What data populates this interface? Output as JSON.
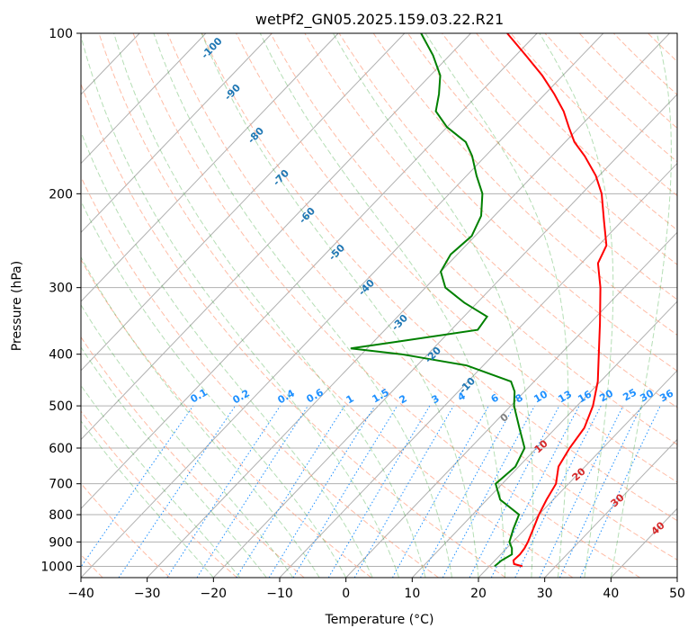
{
  "chart_data": {
    "type": "line",
    "title": "wetPf2_GN05.2025.159.03.22.R21",
    "xlabel": "Temperature (°C)",
    "ylabel": "Pressure (hPa)",
    "xlim": [
      -40,
      50
    ],
    "ylim_hpa": [
      1050,
      100
    ],
    "y_scale": "log",
    "x_ticks": [
      -40,
      -30,
      -20,
      -10,
      0,
      10,
      20,
      30,
      40,
      50
    ],
    "y_ticks": [
      1000,
      900,
      800,
      700,
      600,
      500,
      400,
      300,
      200,
      100
    ],
    "grid": true,
    "isotherm_labels": [
      -100,
      -90,
      -80,
      -70,
      -60,
      -50,
      -40,
      -30,
      -20,
      -10
    ],
    "mixing_ratio_labels": [
      "0.1",
      "0.2",
      "0.4",
      "0.6",
      "1",
      "1.5",
      "2",
      "3",
      "4",
      "6",
      "8",
      "10",
      "13",
      "16",
      "20",
      "25",
      "30",
      "36"
    ],
    "dry_adiabat_labels": [
      "10",
      "20",
      "30",
      "40"
    ],
    "moist_adiabat_labels": [
      "0"
    ],
    "series": [
      {
        "color": "#ff0000",
        "points": [
          {
            "p": 1000,
            "t": 25.0
          },
          {
            "p": 990,
            "t": 23.4
          },
          {
            "p": 975,
            "t": 22.8
          },
          {
            "p": 950,
            "t": 22.9
          },
          {
            "p": 925,
            "t": 22.7
          },
          {
            "p": 900,
            "t": 22.3
          },
          {
            "p": 850,
            "t": 21.2
          },
          {
            "p": 800,
            "t": 20.0
          },
          {
            "p": 750,
            "t": 19.0
          },
          {
            "p": 700,
            "t": 18.1
          },
          {
            "p": 650,
            "t": 16.0
          },
          {
            "p": 600,
            "t": 15.0
          },
          {
            "p": 550,
            "t": 14.3
          },
          {
            "p": 500,
            "t": 12.4
          },
          {
            "p": 450,
            "t": 9.6
          },
          {
            "p": 400,
            "t": 5.8
          },
          {
            "p": 350,
            "t": 1.5
          },
          {
            "p": 300,
            "t": -3.6
          },
          {
            "p": 270,
            "t": -7.5
          },
          {
            "p": 250,
            "t": -8.8
          },
          {
            "p": 225,
            "t": -12.7
          },
          {
            "p": 200,
            "t": -17.0
          },
          {
            "p": 185,
            "t": -20.5
          },
          {
            "p": 170,
            "t": -25.0
          },
          {
            "p": 160,
            "t": -28.6
          },
          {
            "p": 150,
            "t": -31.6
          },
          {
            "p": 140,
            "t": -34.7
          },
          {
            "p": 130,
            "t": -38.6
          },
          {
            "p": 120,
            "t": -43.1
          },
          {
            "p": 110,
            "t": -48.5
          },
          {
            "p": 100,
            "t": -54.5
          }
        ]
      },
      {
        "color": "#008000",
        "points": [
          {
            "p": 1000,
            "t": 20.8
          },
          {
            "p": 975,
            "t": 21.0
          },
          {
            "p": 950,
            "t": 21.7
          },
          {
            "p": 925,
            "t": 20.8
          },
          {
            "p": 900,
            "t": 19.5
          },
          {
            "p": 850,
            "t": 18.2
          },
          {
            "p": 800,
            "t": 17.0
          },
          {
            "p": 750,
            "t": 12.0
          },
          {
            "p": 700,
            "t": 9.0
          },
          {
            "p": 650,
            "t": 9.5
          },
          {
            "p": 600,
            "t": 8.2
          },
          {
            "p": 550,
            "t": 4.5
          },
          {
            "p": 500,
            "t": 0.5
          },
          {
            "p": 470,
            "t": -1.5
          },
          {
            "p": 450,
            "t": -3.5
          },
          {
            "p": 420,
            "t": -12.5
          },
          {
            "p": 400,
            "t": -24.0
          },
          {
            "p": 390,
            "t": -32.5
          },
          {
            "p": 380,
            "t": -27.0
          },
          {
            "p": 360,
            "t": -16.0
          },
          {
            "p": 340,
            "t": -16.5
          },
          {
            "p": 320,
            "t": -22.0
          },
          {
            "p": 300,
            "t": -27.0
          },
          {
            "p": 280,
            "t": -30.0
          },
          {
            "p": 260,
            "t": -31.0
          },
          {
            "p": 240,
            "t": -30.5
          },
          {
            "p": 220,
            "t": -32.0
          },
          {
            "p": 200,
            "t": -35.0
          },
          {
            "p": 185,
            "t": -38.5
          },
          {
            "p": 170,
            "t": -42.0
          },
          {
            "p": 160,
            "t": -45.0
          },
          {
            "p": 150,
            "t": -50.0
          },
          {
            "p": 140,
            "t": -54.0
          },
          {
            "p": 130,
            "t": -56.0
          },
          {
            "p": 120,
            "t": -58.5
          },
          {
            "p": 110,
            "t": -62.5
          },
          {
            "p": 100,
            "t": -67.5
          }
        ]
      }
    ]
  }
}
